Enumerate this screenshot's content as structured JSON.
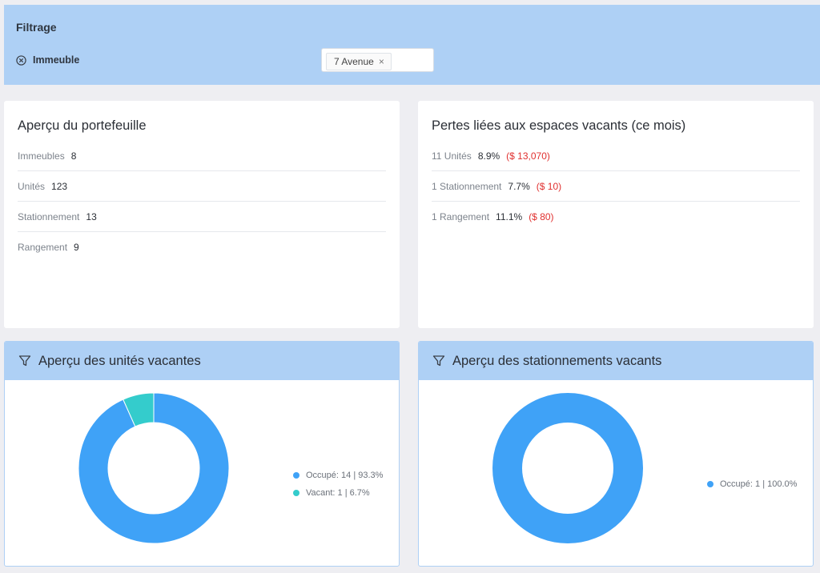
{
  "filter": {
    "title": "Filtrage",
    "field_label": "Immeuble",
    "selected_value": "7 Avenue",
    "remove_symbol": "×"
  },
  "portfolio": {
    "title": "Aperçu du portefeuille",
    "rows": [
      {
        "label": "Immeubles",
        "value": "8"
      },
      {
        "label": "Unités",
        "value": "123"
      },
      {
        "label": "Stationnement",
        "value": "13"
      },
      {
        "label": "Rangement",
        "value": "9"
      }
    ]
  },
  "losses": {
    "title": "Pertes liées aux espaces vacants (ce mois)",
    "rows": [
      {
        "label": "11 Unités",
        "percent": "8.9%",
        "amount": "($ 13,070)"
      },
      {
        "label": "1 Stationnement",
        "percent": "7.7%",
        "amount": "($ 10)"
      },
      {
        "label": "1 Rangement",
        "percent": "11.1%",
        "amount": "($ 80)"
      }
    ]
  },
  "colors": {
    "occupied": "#3fa2f7",
    "vacant": "#34cccc",
    "loss": "#e0302f",
    "header": "#aed0f5"
  },
  "chart_data": [
    {
      "type": "pie",
      "title": "Aperçu des unités vacantes",
      "labels": [
        "Occupé",
        "Vacant"
      ],
      "values": [
        14,
        1
      ],
      "percents": [
        93.3,
        6.7
      ],
      "legend_text": [
        "Occupé: 14 | 93.3%",
        "Vacant: 1 | 6.7%"
      ],
      "legend_position": "right",
      "donut": true
    },
    {
      "type": "pie",
      "title": "Aperçu des stationnements vacants",
      "labels": [
        "Occupé"
      ],
      "values": [
        1
      ],
      "percents": [
        100.0
      ],
      "legend_text": [
        "Occupé: 1 | 100.0%"
      ],
      "legend_position": "right",
      "donut": true
    }
  ]
}
